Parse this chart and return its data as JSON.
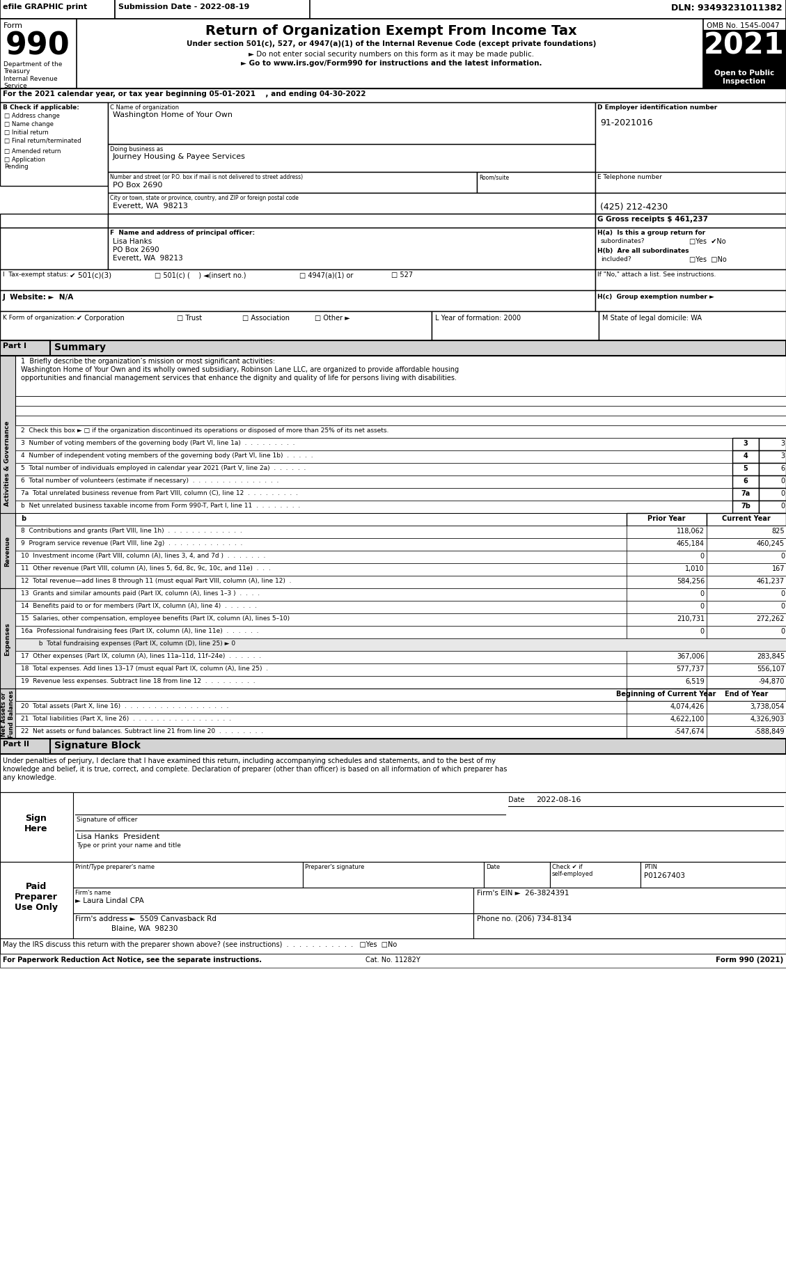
{
  "title": "Return of Organization Exempt From Income Tax",
  "subtitle1": "Under section 501(c), 527, or 4947(a)(1) of the Internal Revenue Code (except private foundations)",
  "subtitle2": "► Do not enter social security numbers on this form as it may be made public.",
  "subtitle3": "► Go to www.irs.gov/Form990 for instructions and the latest information.",
  "form_number": "990",
  "year": "2021",
  "omb": "OMB No. 1545-0047",
  "open_to_public": "Open to Public\nInspection",
  "efile": "efile GRAPHIC print",
  "submission_date": "Submission Date - 2022-08-19",
  "dln": "DLN: 93493231011382",
  "dept": "Department of the\nTreasury\nInternal Revenue\nService",
  "line_a": "For the 2021 calendar year, or tax year beginning 05-01-2021    , and ending 04-30-2022",
  "check_b_label": "B Check if applicable:",
  "check_items": [
    "Address change",
    "Name change",
    "Initial return",
    "Final return/terminated",
    "Amended return",
    "Application\nPending"
  ],
  "org_name_label": "C Name of organization",
  "org_name": "Washington Home of Your Own",
  "dba_label": "Doing business as",
  "dba": "Journey Housing & Payee Services",
  "street_label": "Number and street (or P.O. box if mail is not delivered to street address)",
  "room_label": "Room/suite",
  "street": "PO Box 2690",
  "city_label": "City or town, state or province, country, and ZIP or foreign postal code",
  "city": "Everett, WA  98213",
  "ein_label": "D Employer identification number",
  "ein": "91-2021016",
  "phone_label": "E Telephone number",
  "phone": "(425) 212-4230",
  "gross_receipts": "G Gross receipts $ 461,237",
  "principal_label": "F  Name and address of principal officer:",
  "principal_name": "Lisa Hanks",
  "principal_addr1": "PO Box 2690",
  "principal_addr2": "Everett, WA  98213",
  "ha_label": "H(a)  Is this a group return for",
  "ha_sub": "subordinates?",
  "hb_label": "H(b)  Are all subordinates",
  "hb_sub": "included?",
  "hc_label": "H(c)  Group exemption number ►",
  "attach_note": "If \"No,\" attach a list. See instructions.",
  "tax_exempt_label": "I  Tax-exempt status:",
  "tax_exempt_501c3": "✔ 501(c)(3)",
  "tax_exempt_501c": "□ 501(c) (    ) ◄(insert no.)",
  "tax_exempt_4947": "□ 4947(a)(1) or",
  "tax_exempt_527": "□ 527",
  "website_label": "J  Website: ►  N/A",
  "k_label": "K Form of organization:",
  "k_corp": "✔ Corporation",
  "k_trust": "□ Trust",
  "k_assoc": "□ Association",
  "k_other": "□ Other ►",
  "l_label": "L Year of formation: 2000",
  "m_label": "M State of legal domicile: WA",
  "part1_label": "Part I",
  "part1_title": "Summary",
  "mission_label": "1  Briefly describe the organization’s mission or most significant activities:",
  "mission_text1": "Washington Home of Your Own and its wholly owned subsidiary, Robinson Lane LLC, are organized to provide affordable housing",
  "mission_text2": "opportunities and financial management services that enhance the dignity and quality of life for persons living with disabilities.",
  "check2": "2  Check this box ► □ if the organization discontinued its operations or disposed of more than 25% of its net assets.",
  "lines_346": [
    {
      "num": "3",
      "text": "Number of voting members of the governing body (Part VI, line 1a)  .  .  .  .  .  .  .  .  .",
      "box": "3",
      "val": "3"
    },
    {
      "num": "4",
      "text": "Number of independent voting members of the governing body (Part VI, line 1b)  .  .  .  .  .",
      "box": "4",
      "val": "3"
    },
    {
      "num": "5",
      "text": "Total number of individuals employed in calendar year 2021 (Part V, line 2a)  .  .  .  .  .  .",
      "box": "5",
      "val": "6"
    },
    {
      "num": "6",
      "text": "Total number of volunteers (estimate if necessary)  .  .  .  .  .  .  .  .  .  .  .  .  .  .  .",
      "box": "6",
      "val": "0"
    }
  ],
  "lines_7ab": [
    {
      "num": "7a",
      "text": "Total unrelated business revenue from Part VIII, column (C), line 12  .  .  .  .  .  .  .  .  .",
      "box": "7a",
      "val": "0"
    },
    {
      "num": "b",
      "text": "Net unrelated business taxable income from Form 990-T, Part I, line 11  .  .  .  .  .  .  .  .",
      "box": "7b",
      "val": "0"
    }
  ],
  "revenue_header": [
    "Prior Year",
    "Current Year"
  ],
  "revenue_sidebar": "Revenue",
  "revenue_lines": [
    {
      "num": "8",
      "text": "Contributions and grants (Part VIII, line 1h)  .  .  .  .  .  .  .  .  .  .  .  .  .",
      "prior": "118,062",
      "current": "825"
    },
    {
      "num": "9",
      "text": "Program service revenue (Part VIII, line 2g)  .  .  .  .  .  .  .  .  .  .  .  .  .",
      "prior": "465,184",
      "current": "460,245"
    },
    {
      "num": "10",
      "text": "Investment income (Part VIII, column (A), lines 3, 4, and 7d )  .  .  .  .  .  .  .",
      "prior": "0",
      "current": "0"
    },
    {
      "num": "11",
      "text": "Other revenue (Part VIII, column (A), lines 5, 6d, 8c, 9c, 10c, and 11e)  .  .  .",
      "prior": "1,010",
      "current": "167"
    },
    {
      "num": "12",
      "text": "Total revenue—add lines 8 through 11 (must equal Part VIII, column (A), line 12)  .",
      "prior": "584,256",
      "current": "461,237"
    }
  ],
  "expenses_sidebar": "Expenses",
  "expenses_lines": [
    {
      "num": "13",
      "text": "Grants and similar amounts paid (Part IX, column (A), lines 1–3 )  .  .  .  .",
      "prior": "0",
      "current": "0"
    },
    {
      "num": "14",
      "text": "Benefits paid to or for members (Part IX, column (A), line 4)  .  .  .  .  .  .",
      "prior": "0",
      "current": "0"
    },
    {
      "num": "15",
      "text": "Salaries, other compensation, employee benefits (Part IX, column (A), lines 5–10)",
      "prior": "210,731",
      "current": "272,262"
    },
    {
      "num": "16a",
      "text": "Professional fundraising fees (Part IX, column (A), line 11e)  .  .  .  .  .  .",
      "prior": "0",
      "current": "0"
    },
    {
      "num": "b",
      "text": "Total fundraising expenses (Part IX, column (D), line 25) ► 0",
      "prior": "",
      "current": ""
    },
    {
      "num": "17",
      "text": "Other expenses (Part IX, column (A), lines 11a–11d, 11f–24e)  .  .  .  .  .  .",
      "prior": "367,006",
      "current": "283,845"
    },
    {
      "num": "18",
      "text": "Total expenses. Add lines 13–17 (must equal Part IX, column (A), line 25)  .",
      "prior": "577,737",
      "current": "556,107"
    },
    {
      "num": "19",
      "text": "Revenue less expenses. Subtract line 18 from line 12  .  .  .  .  .  .  .  .  .",
      "prior": "6,519",
      "current": "-94,870"
    }
  ],
  "net_assets_sidebar": "Net Assets or\nFund Balances",
  "net_assets_header": [
    "Beginning of Current Year",
    "End of Year"
  ],
  "net_assets_lines": [
    {
      "num": "20",
      "text": "Total assets (Part X, line 16)  .  .  .  .  .  .  .  .  .  .  .  .  .  .  .  .  .  .",
      "prior": "4,074,426",
      "current": "3,738,054"
    },
    {
      "num": "21",
      "text": "Total liabilities (Part X, line 26)  .  .  .  .  .  .  .  .  .  .  .  .  .  .  .  .  .",
      "prior": "4,622,100",
      "current": "4,326,903"
    },
    {
      "num": "22",
      "text": "Net assets or fund balances. Subtract line 21 from line 20  .  .  .  .  .  .  .  .",
      "prior": "-547,674",
      "current": "-588,849"
    }
  ],
  "part2_label": "Part II",
  "part2_title": "Signature Block",
  "penalty_text1": "Under penalties of perjury, I declare that I have examined this return, including accompanying schedules and statements, and to the best of my",
  "penalty_text2": "knowledge and belief, it is true, correct, and complete. Declaration of preparer (other than officer) is based on all information of which preparer has",
  "penalty_text3": "any knowledge.",
  "sign_here_label": "Sign\nHere",
  "sig_date": "2022-08-16",
  "sig_date_label": "Date",
  "sig_officer_line": "Signature of officer",
  "sig_name_title": "Lisa Hanks  President",
  "sig_type_label": "Type or print your name and title",
  "paid_preparer": "Paid\nPreparer\nUse Only",
  "preparer_name_label": "Print/Type preparer's name",
  "preparer_sig_label": "Preparer's signature",
  "preparer_date_label": "Date",
  "ptin_label": "PTIN",
  "ptin": "P01267403",
  "check_self_employed": "Check ✔ if\nself-employed",
  "firm_name_label": "Firm's name",
  "firm_name": "► Laura Lindal CPA",
  "firm_ein_label": "Firm's EIN ►",
  "firm_ein": "26-3824391",
  "firm_addr_label": "Firm's address ►",
  "firm_addr": "5509 Canvasback Rd",
  "firm_city": "Blaine, WA  98230",
  "phone_no_label": "Phone no.",
  "phone_no": "(206) 734-8134",
  "discuss_label": "May the IRS discuss this return with the preparer shown above? (see instructions)  .  .  .  .  .  .  .  .  .  .  .",
  "paperwork_label": "For Paperwork Reduction Act Notice, see the separate instructions.",
  "cat_no": "Cat. No. 11282Y",
  "form_footer": "Form 990 (2021)"
}
